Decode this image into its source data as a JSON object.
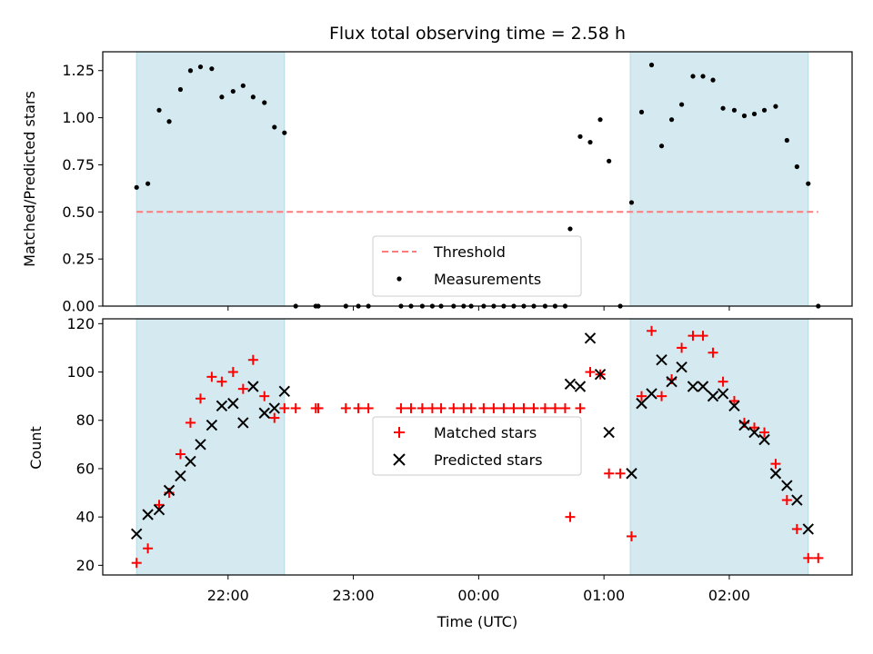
{
  "chart_data": {
    "type": "scatter",
    "title": "Flux total observing time = 2.58 h",
    "x_label": "Time (UTC)",
    "x_ticks": [
      {
        "t": 22.0,
        "label": "22:00"
      },
      {
        "t": 23.0,
        "label": "23:00"
      },
      {
        "t": 24.0,
        "label": "00:00"
      },
      {
        "t": 25.0,
        "label": "01:00"
      },
      {
        "t": 26.0,
        "label": "02:00"
      }
    ],
    "x_range_hours": [
      21.0,
      26.98
    ],
    "observing_windows_hours": [
      [
        21.27,
        22.45
      ],
      [
        25.21,
        26.63
      ]
    ],
    "window_color": "#d4eaf0",
    "panels": [
      {
        "id": "ratio",
        "ylabel": "Matched/Predicted stars",
        "ylim": [
          0,
          1.35
        ],
        "y_ticks": [
          "0.00",
          "0.25",
          "0.50",
          "0.75",
          "1.00",
          "1.25"
        ],
        "threshold": {
          "label": "Threshold",
          "value": 0.5,
          "color": "#ff7a7a"
        },
        "series": [
          {
            "name": "Measurements",
            "marker": "dot",
            "color": "#000000",
            "x": [
              21.27,
              21.36,
              21.45,
              21.53,
              21.62,
              21.7,
              21.78,
              21.87,
              21.95,
              22.04,
              22.12,
              22.2,
              22.29,
              22.37,
              22.45,
              22.54,
              22.7,
              22.72,
              22.94,
              23.04,
              23.12,
              23.38,
              23.46,
              23.55,
              23.63,
              23.7,
              23.8,
              23.88,
              23.94,
              24.04,
              24.12,
              24.2,
              24.28,
              24.36,
              24.44,
              24.53,
              24.61,
              24.69,
              24.73,
              24.81,
              24.89,
              24.97,
              25.04,
              25.13,
              25.22,
              25.3,
              25.38,
              25.46,
              25.54,
              25.62,
              25.71,
              25.79,
              25.87,
              25.95,
              26.04,
              26.12,
              26.2,
              26.28,
              26.37,
              26.46,
              26.54,
              26.63,
              26.71
            ],
            "y": [
              0.63,
              0.65,
              1.04,
              0.98,
              1.15,
              1.25,
              1.27,
              1.26,
              1.11,
              1.14,
              1.17,
              1.11,
              1.08,
              0.95,
              0.92,
              0,
              0,
              0,
              0,
              0,
              0,
              0,
              0,
              0,
              0,
              0,
              0,
              0,
              0,
              0,
              0,
              0,
              0,
              0,
              0,
              0,
              0,
              0,
              0.41,
              0.9,
              0.87,
              0.99,
              0.77,
              0,
              0.55,
              1.03,
              1.28,
              0.85,
              0.99,
              1.07,
              1.22,
              1.22,
              1.2,
              1.05,
              1.04,
              1.01,
              1.02,
              1.04,
              1.06,
              0.88,
              0.74,
              0.65,
              0
            ]
          }
        ]
      },
      {
        "id": "counts",
        "ylabel": "Count",
        "ylim": [
          16,
          122
        ],
        "y_ticks": [
          "20",
          "40",
          "60",
          "80",
          "100",
          "120"
        ],
        "series": [
          {
            "name": "Matched stars",
            "marker": "plus",
            "color": "#ff0000",
            "x": [
              21.27,
              21.36,
              21.45,
              21.53,
              21.62,
              21.7,
              21.78,
              21.87,
              21.95,
              22.04,
              22.12,
              22.2,
              22.29,
              22.37,
              22.45,
              22.54,
              22.7,
              22.72,
              22.94,
              23.04,
              23.12,
              23.38,
              23.46,
              23.55,
              23.63,
              23.7,
              23.8,
              23.88,
              23.94,
              24.04,
              24.12,
              24.2,
              24.28,
              24.36,
              24.44,
              24.53,
              24.61,
              24.69,
              24.73,
              24.81,
              24.89,
              24.97,
              25.04,
              25.13,
              25.22,
              25.3,
              25.38,
              25.46,
              25.54,
              25.62,
              25.71,
              25.79,
              25.87,
              25.95,
              26.04,
              26.12,
              26.2,
              26.28,
              26.37,
              26.46,
              26.54,
              26.63,
              26.71
            ],
            "y": [
              21,
              27,
              45,
              50,
              66,
              79,
              89,
              98,
              96,
              100,
              93,
              105,
              90,
              81,
              85,
              85,
              85,
              85,
              85,
              85,
              85,
              85,
              85,
              85,
              85,
              85,
              85,
              85,
              85,
              85,
              85,
              85,
              85,
              85,
              85,
              85,
              85,
              85,
              40,
              85,
              100,
              99,
              58,
              58,
              32,
              90,
              117,
              90,
              97,
              110,
              115,
              115,
              108,
              96,
              88,
              79,
              77,
              75,
              62,
              47,
              35,
              23,
              23
            ]
          },
          {
            "name": "Predicted stars",
            "marker": "x",
            "color": "#000000",
            "x": [
              21.27,
              21.36,
              21.45,
              21.53,
              21.62,
              21.7,
              21.78,
              21.87,
              21.95,
              22.04,
              22.12,
              22.2,
              22.29,
              22.37,
              22.45,
              24.73,
              24.81,
              24.89,
              24.97,
              25.04,
              25.22,
              25.3,
              25.38,
              25.46,
              25.54,
              25.62,
              25.71,
              25.79,
              25.87,
              25.95,
              26.04,
              26.12,
              26.2,
              26.28,
              26.37,
              26.46,
              26.54,
              26.63
            ],
            "y": [
              33,
              41,
              43,
              51,
              57,
              63,
              70,
              78,
              86,
              87,
              79,
              94,
              83,
              85,
              92,
              95,
              94,
              114,
              99,
              75,
              58,
              87,
              91,
              105,
              96,
              102,
              94,
              94,
              90,
              91,
              86,
              78,
              75,
              72,
              58,
              53,
              47,
              35
            ]
          }
        ]
      }
    ],
    "legend_position": "lower center"
  }
}
